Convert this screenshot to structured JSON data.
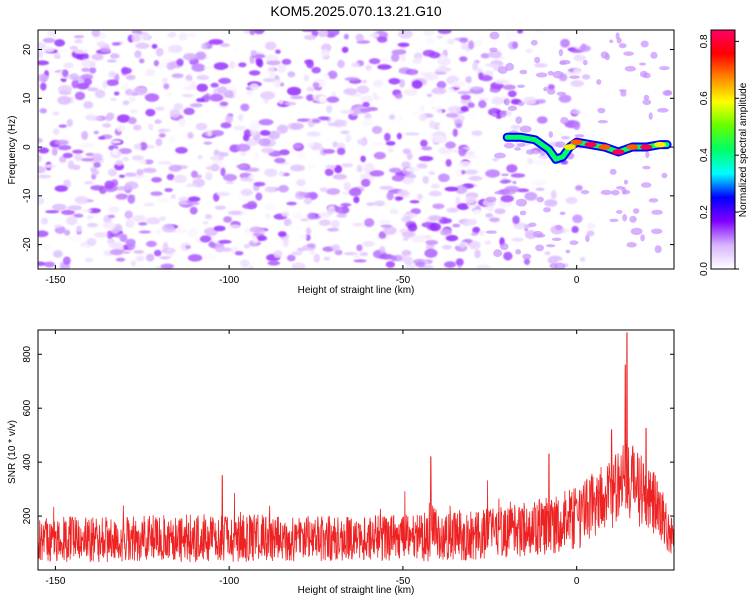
{
  "title": "KOM5.2025.070.13.21.G10",
  "chart_data": [
    {
      "type": "heatmap",
      "xlabel": "Height of straight line (km)",
      "ylabel": "Frequency (Hz)",
      "xlim": [
        -155,
        28
      ],
      "ylim": [
        -25,
        24
      ],
      "x_ticks": [
        -150,
        -100,
        -50,
        0
      ],
      "y_ticks": [
        -20,
        -10,
        0,
        10,
        20
      ],
      "grid": false,
      "colorbar": {
        "label": "Normalized spectral amplitude",
        "range": [
          0,
          0.84
        ],
        "ticks": [
          "0.0",
          "0.2",
          "0.4",
          "0.6",
          "0.8"
        ],
        "tick_values": [
          0.0,
          0.2,
          0.4,
          0.6,
          0.8
        ],
        "colors": [
          "#ffffff",
          "#d8b4ff",
          "#8000ff",
          "#0000ff",
          "#00ffff",
          "#00ff66",
          "#66ff00",
          "#ffff00",
          "#ff8800",
          "#ff0000",
          "#ff0066"
        ]
      },
      "noise_region": {
        "x_range": [
          -155,
          -20
        ],
        "amplitude_range": [
          0.0,
          0.15
        ],
        "dominant_color": "#7b2cf0"
      },
      "signal_track": {
        "x": [
          -20,
          -16,
          -12,
          -8,
          -6,
          -4,
          -2,
          0,
          4,
          8,
          12,
          16,
          20,
          24,
          26
        ],
        "y": [
          2,
          2,
          1.5,
          -0.5,
          -2.5,
          -2,
          0,
          1,
          0.5,
          0,
          -1,
          0,
          0,
          0.5,
          0.5
        ],
        "amplitude": [
          0.45,
          0.5,
          0.5,
          0.45,
          0.55,
          0.45,
          0.6,
          0.7,
          0.82,
          0.7,
          0.82,
          0.7,
          0.82,
          0.6,
          0.5
        ]
      }
    },
    {
      "type": "line",
      "xlabel": "Height of straight line (km)",
      "ylabel": "SNR (10 * v/v)",
      "xlim": [
        -155,
        28
      ],
      "ylim": [
        0,
        890
      ],
      "x_ticks": [
        -150,
        -100,
        -50,
        0
      ],
      "y_ticks": [
        200,
        400,
        600,
        800
      ],
      "grid": false,
      "series": [
        {
          "color": "#ee2222",
          "x": [
            -155,
            -145,
            -135,
            -125,
            -115,
            -105,
            -95,
            -85,
            -75,
            -65,
            -55,
            -45,
            -42,
            -40,
            -35,
            -25,
            -15,
            -5,
            0,
            5,
            10,
            13,
            14,
            15,
            18,
            22,
            26,
            28
          ],
          "baseline": [
            110,
            115,
            112,
            118,
            115,
            118,
            120,
            118,
            116,
            120,
            118,
            120,
            150,
            140,
            125,
            135,
            150,
            170,
            190,
            240,
            290,
            310,
            320,
            330,
            300,
            260,
            160,
            100
          ],
          "noise": [
            80,
            85,
            85,
            85,
            90,
            90,
            90,
            85,
            85,
            85,
            85,
            90,
            120,
            100,
            90,
            95,
            100,
            110,
            120,
            130,
            140,
            150,
            150,
            150,
            140,
            130,
            90,
            60
          ],
          "peaks": [
            {
              "x": -42,
              "y": 420
            },
            {
              "x": 14.5,
              "y": 880
            },
            {
              "x": 14,
              "y": 760
            },
            {
              "x": 10,
              "y": 520
            },
            {
              "x": 20,
              "y": 525
            },
            {
              "x": -102,
              "y": 350
            },
            {
              "x": -8,
              "y": 430
            }
          ]
        }
      ]
    }
  ]
}
